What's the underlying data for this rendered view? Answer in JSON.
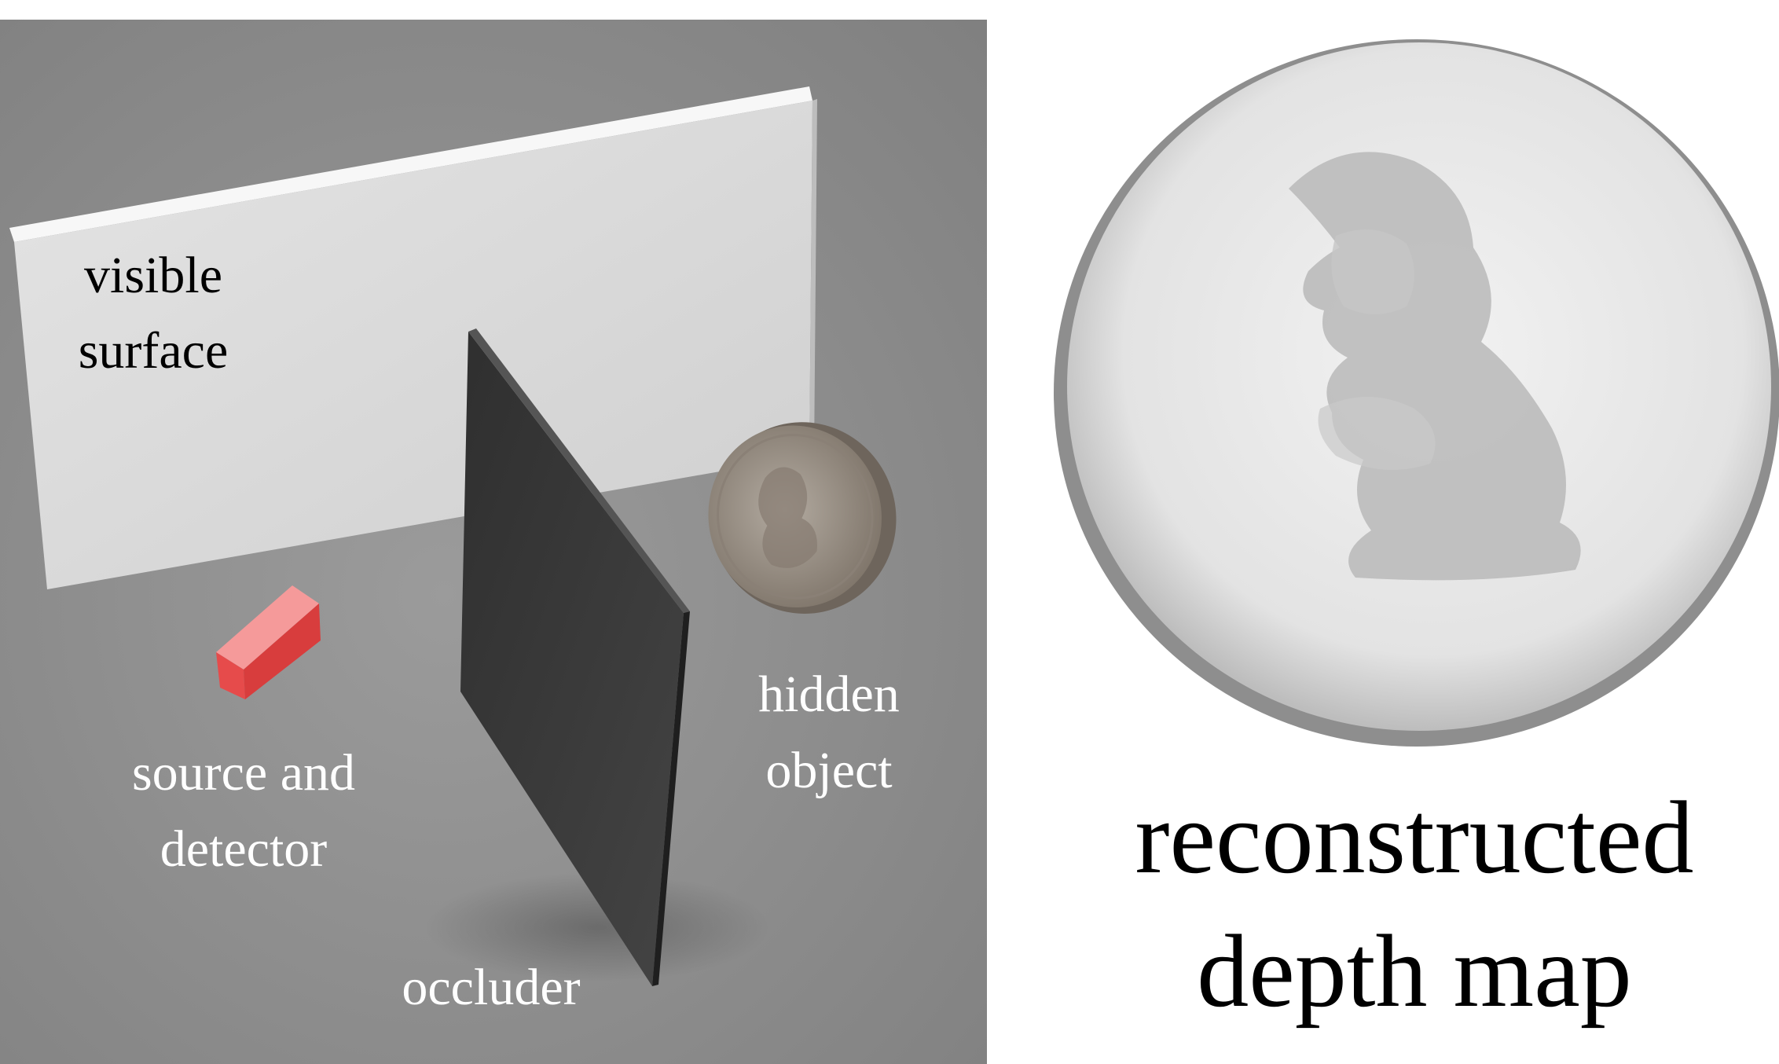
{
  "scene": {
    "labels": {
      "visible_surface": [
        "visible",
        "surface"
      ],
      "source_detector": [
        "source and",
        "detector"
      ],
      "hidden_object": [
        "hidden",
        "object"
      ],
      "occluder": "occluder"
    }
  },
  "depth_map": {
    "caption": [
      "reconstructed",
      "depth map"
    ]
  },
  "colors": {
    "floor": "#8c8c8c",
    "wall": "#d6d6d6",
    "occluder": "#3a3a3a",
    "source_box": "#ef5a5a",
    "coin": "#9a8f84",
    "scene_text": "#ffffff",
    "caption_text": "#000000"
  }
}
